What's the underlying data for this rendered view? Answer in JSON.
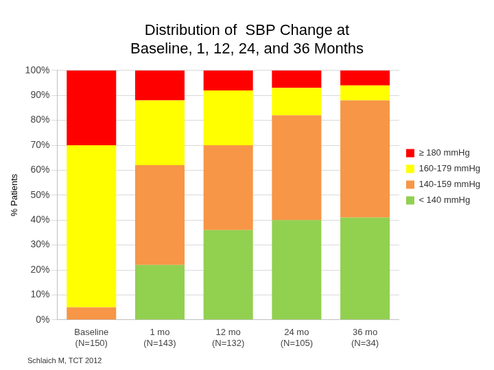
{
  "chart_data": {
    "type": "bar",
    "title": [
      "Distribution of  SBP Change at",
      "Baseline, 1, 12, 24, and 36 Months"
    ],
    "y_label": "% Patients",
    "categories": [
      "Baseline",
      "1 mo",
      "12 mo",
      "24 mo",
      "36 mo"
    ],
    "n_labels": [
      "(N=150)",
      "(N=143)",
      "(N=132)",
      "(N=105)",
      "(N=34)"
    ],
    "series": [
      {
        "name": "< 140 mmHg",
        "color": "#92d050",
        "values": [
          0,
          22,
          36,
          40,
          41
        ]
      },
      {
        "name": "140-159 mmHg",
        "color": "#f79646",
        "values": [
          5,
          40,
          34,
          42,
          47
        ]
      },
      {
        "name": "160-179 mmHg",
        "color": "#ffff00",
        "values": [
          65,
          26,
          22,
          11,
          6
        ]
      },
      {
        "name": "≥ 180 mmHg",
        "color": "#ff0000",
        "values": [
          30,
          12,
          8,
          7,
          6
        ]
      }
    ],
    "ylim": [
      0,
      100
    ],
    "yticks": [
      {
        "value": 0,
        "label": "0%"
      },
      {
        "value": 10,
        "label": "10%"
      },
      {
        "value": 20,
        "label": "20%"
      },
      {
        "value": 30,
        "label": "30%"
      },
      {
        "value": 40,
        "label": "40%"
      },
      {
        "value": 50,
        "label": "50%"
      },
      {
        "value": 60,
        "label": "60%"
      },
      {
        "value": 70,
        "label": "70%"
      },
      {
        "value": 80,
        "label": "80%"
      },
      {
        "value": 90,
        "label": "90%"
      },
      {
        "value": 100,
        "label": "100%"
      }
    ],
    "stacked": true,
    "grid": true,
    "legend": "right",
    "annotations": [
      "Schlaich M, TCT 2012"
    ]
  }
}
